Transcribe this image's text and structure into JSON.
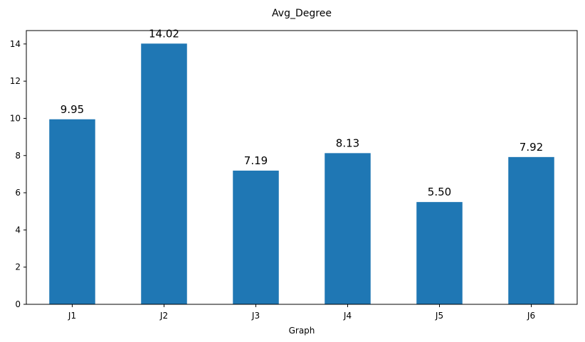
{
  "chart_data": {
    "type": "bar",
    "title": "Avg_Degree",
    "xlabel": "Graph",
    "ylabel": "",
    "categories": [
      "J1",
      "J2",
      "J3",
      "J4",
      "J5",
      "J6"
    ],
    "values": [
      9.95,
      14.02,
      7.19,
      8.13,
      5.5,
      7.92
    ],
    "value_labels": [
      "9.95",
      "14.02",
      "7.19",
      "8.13",
      "5.50",
      "7.92"
    ],
    "ylim": [
      0,
      14.72
    ],
    "yticks": [
      0,
      2,
      4,
      6,
      8,
      10,
      12,
      14
    ],
    "grid": false,
    "legend": "none",
    "bar_color": "#1f77b4"
  }
}
